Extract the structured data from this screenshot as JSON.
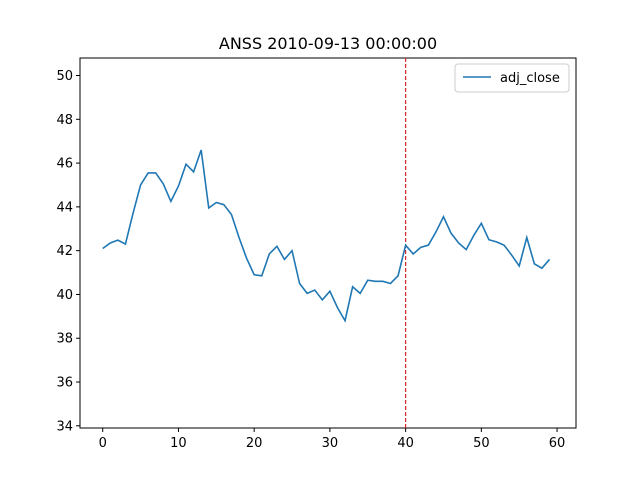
{
  "chart_data": {
    "type": "line",
    "title": "ANSS 2010-09-13 00:00:00",
    "xlabel": "",
    "ylabel": "",
    "xlim": [
      -3,
      62.5
    ],
    "ylim": [
      33.9,
      50.8
    ],
    "x_ticks": [
      0,
      10,
      20,
      30,
      40,
      50,
      60
    ],
    "y_ticks": [
      34,
      36,
      38,
      40,
      42,
      44,
      46,
      48,
      50
    ],
    "grid": false,
    "legend": "top-right",
    "series": [
      {
        "name": "adj_close",
        "color": "#1f77b4",
        "x": [
          0,
          1,
          2,
          3,
          4,
          5,
          6,
          7,
          8,
          9,
          10,
          11,
          12,
          13,
          14,
          15,
          16,
          17,
          18,
          19,
          20,
          21,
          22,
          23,
          24,
          25,
          26,
          27,
          28,
          29,
          30,
          31,
          32,
          33,
          34,
          35,
          36,
          37,
          38,
          39,
          40,
          41,
          42,
          43,
          44,
          45,
          46,
          47,
          48,
          49,
          50,
          51,
          52,
          53,
          54,
          55,
          56,
          57,
          58,
          59
        ],
        "values": [
          42.1,
          42.35,
          42.48,
          42.3,
          43.7,
          45.0,
          45.55,
          45.55,
          45.05,
          44.25,
          44.95,
          45.95,
          45.6,
          46.6,
          43.95,
          44.2,
          44.1,
          43.65,
          42.6,
          41.65,
          40.9,
          40.85,
          41.85,
          42.2,
          41.6,
          42.0,
          40.5,
          40.05,
          40.2,
          39.75,
          40.15,
          39.4,
          38.8,
          40.35,
          40.05,
          40.65,
          40.6,
          40.6,
          40.5,
          40.85,
          42.25,
          41.85,
          42.15,
          42.25,
          42.85,
          43.55,
          42.8,
          42.35,
          42.05,
          42.7,
          43.25,
          42.5,
          42.4,
          42.25,
          41.8,
          41.3,
          42.6,
          41.4,
          41.2,
          41.6
        ]
      }
    ],
    "vline": {
      "x": 40,
      "color": "#d62728",
      "style": "dashed"
    }
  }
}
